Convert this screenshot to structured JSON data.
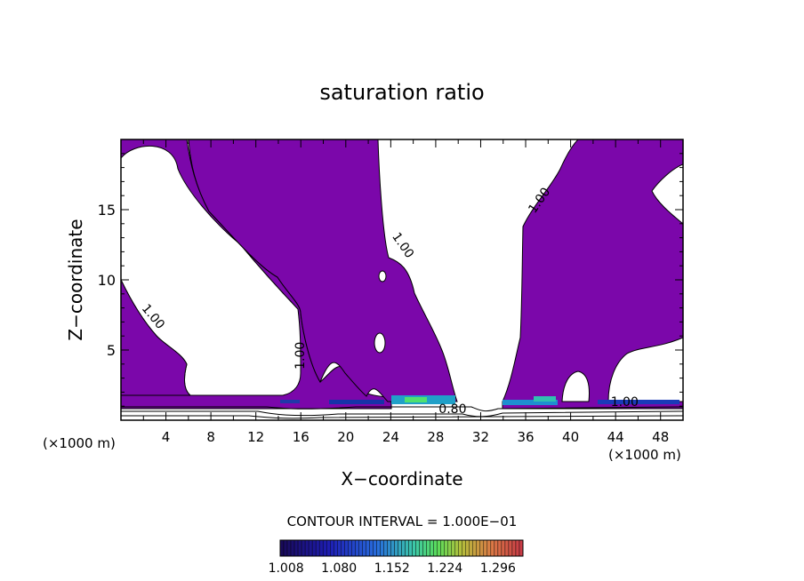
{
  "chart_data": {
    "type": "contour",
    "title": "saturation ratio",
    "xlabel": "X−coordinate",
    "ylabel": "Z−coordinate",
    "x_unit_left": "(×1000 m)",
    "x_unit_right": "(×1000 m)",
    "xlim": [
      0,
      50
    ],
    "ylim": [
      0,
      20
    ],
    "xticks": [
      4,
      8,
      12,
      16,
      20,
      24,
      28,
      32,
      36,
      40,
      44,
      48
    ],
    "yticks": [
      5,
      10,
      15
    ],
    "contour_labels": [
      {
        "text": "1.00",
        "x": 2.6,
        "y": 7.2,
        "angle": 50
      },
      {
        "text": "1.00",
        "x": 16.3,
        "y": 4.6,
        "angle": -90
      },
      {
        "text": "1.00",
        "x": 24.8,
        "y": 12.3,
        "angle": 55
      },
      {
        "text": "1.00",
        "x": 37.5,
        "y": 15.5,
        "angle": -55
      },
      {
        "text": "0.80",
        "x": 29.5,
        "y": 0.5,
        "angle": 0
      },
      {
        "text": "1.00",
        "x": 44.8,
        "y": 1.0,
        "angle": 0
      }
    ],
    "fill_color": "#7b07aa",
    "contour_interval_text": "CONTOUR INTERVAL = 1.000E−01",
    "colorbar": {
      "ticks": [
        "1.008",
        "1.080",
        "1.152",
        "1.224",
        "1.296"
      ],
      "min": 1.0,
      "max": 1.33
    }
  }
}
